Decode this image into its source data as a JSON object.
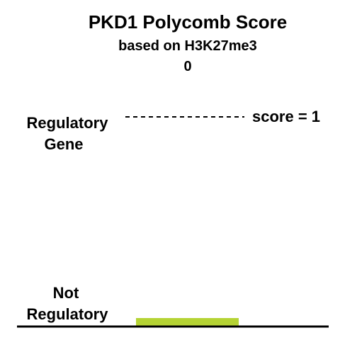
{
  "chart_data": {
    "type": "bar",
    "title": "PKD1 Polycomb Score",
    "subtitle": "based on H3K27me3",
    "value_label": "0",
    "value": 0,
    "ylim": [
      0,
      1
    ],
    "y_labels": {
      "top": [
        "Regulatory",
        "Gene"
      ],
      "bottom": [
        "Not",
        "Regulatory"
      ]
    },
    "reference_line": {
      "value": 1,
      "label": "score = 1"
    },
    "bar_color": "#b5d334",
    "axis_color": "#000000"
  }
}
